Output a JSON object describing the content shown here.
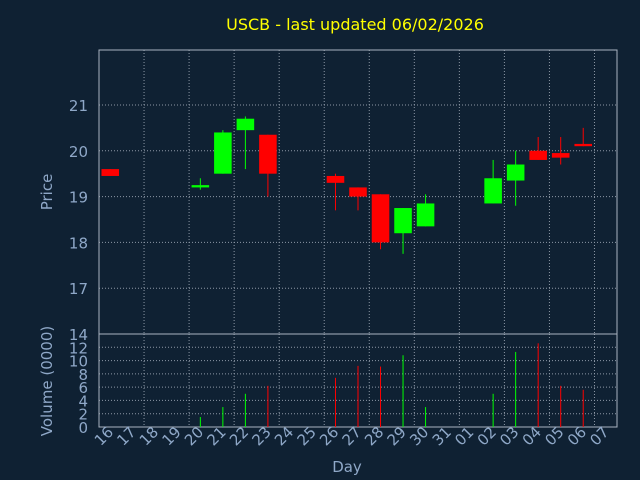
{
  "colors": {
    "background": "#0f2133",
    "frame": "#aab4c0",
    "grid": "#8d98a6",
    "title": "#ffff00",
    "axis_text": "#8fa8c8",
    "up": "#00ff00",
    "down": "#ff0000"
  },
  "chart_data": [
    {
      "type": "candlestick",
      "title": "USCB - last updated 06/02/2026",
      "ylabel": "Price",
      "ylim": [
        16,
        22.2
      ],
      "yticks": [
        17,
        18,
        19,
        20,
        21
      ],
      "grid": true,
      "candles": [
        {
          "day": "16",
          "open": 19.6,
          "high": 19.6,
          "low": 19.45,
          "close": 19.45
        },
        {
          "day": "20",
          "open": 19.2,
          "high": 19.4,
          "low": 19.15,
          "close": 19.25
        },
        {
          "day": "21",
          "open": 19.5,
          "high": 20.45,
          "low": 19.5,
          "close": 20.4
        },
        {
          "day": "22",
          "open": 20.45,
          "high": 20.75,
          "low": 19.6,
          "close": 20.7
        },
        {
          "day": "23",
          "open": 20.35,
          "high": 20.35,
          "low": 19.0,
          "close": 19.5
        },
        {
          "day": "26",
          "open": 19.45,
          "high": 19.5,
          "low": 18.7,
          "close": 19.3
        },
        {
          "day": "27",
          "open": 19.2,
          "high": 19.2,
          "low": 18.7,
          "close": 19.0
        },
        {
          "day": "28",
          "open": 19.05,
          "high": 19.05,
          "low": 17.85,
          "close": 18.0
        },
        {
          "day": "29",
          "open": 18.2,
          "high": 18.75,
          "low": 17.75,
          "close": 18.75
        },
        {
          "day": "30",
          "open": 18.35,
          "high": 19.05,
          "low": 18.35,
          "close": 18.85
        },
        {
          "day": "02",
          "open": 18.85,
          "high": 19.8,
          "low": 18.85,
          "close": 19.4
        },
        {
          "day": "03",
          "open": 19.35,
          "high": 20.0,
          "low": 18.8,
          "close": 19.7
        },
        {
          "day": "04",
          "open": 20.0,
          "high": 20.3,
          "low": 19.8,
          "close": 19.8
        },
        {
          "day": "05",
          "open": 19.95,
          "high": 20.3,
          "low": 19.7,
          "close": 19.85
        },
        {
          "day": "06",
          "open": 20.15,
          "high": 20.5,
          "low": 20.1,
          "close": 20.1
        }
      ]
    },
    {
      "type": "bar",
      "ylabel": "Volume (0000)",
      "xlabel": "Day",
      "ylim": [
        0,
        14
      ],
      "yticks": [
        0,
        2,
        4,
        6,
        8,
        10,
        12,
        14
      ],
      "categories": [
        "16",
        "17",
        "18",
        "19",
        "20",
        "21",
        "22",
        "23",
        "24",
        "25",
        "26",
        "27",
        "28",
        "29",
        "30",
        "31",
        "01",
        "02",
        "03",
        "04",
        "05",
        "06",
        "07"
      ],
      "values": [
        0,
        0,
        0,
        0,
        1.5,
        3,
        5,
        6.2,
        0,
        0,
        7.4,
        9.2,
        9.1,
        10.8,
        3,
        0,
        0,
        5,
        11.3,
        12.6,
        6.2,
        5.6,
        0
      ],
      "direction": [
        "",
        "",
        "",
        "",
        "up",
        "up",
        "up",
        "down",
        "",
        "",
        "down",
        "down",
        "down",
        "up",
        "up",
        "",
        "",
        "up",
        "up",
        "down",
        "down",
        "down",
        ""
      ]
    }
  ]
}
